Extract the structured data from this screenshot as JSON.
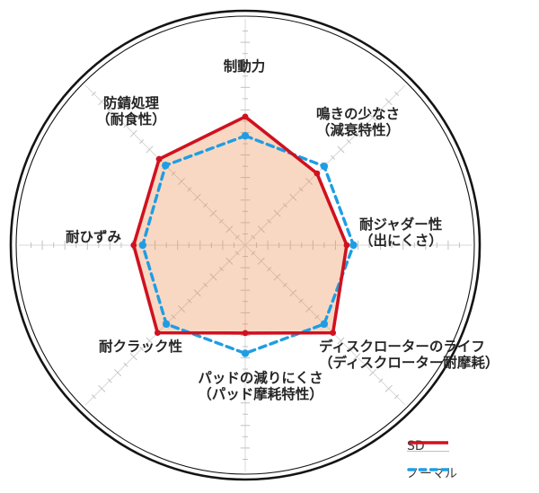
{
  "page": {
    "background": "#ffffff",
    "description_text": ""
  },
  "chart_data": {
    "type": "radar",
    "title": "",
    "grid": true,
    "legend_position": "bottom-right",
    "scale": {
      "min": 0,
      "max": 20,
      "tick_interval": 1,
      "outer_circle_radius_units": 20
    },
    "axes": [
      {
        "id": "braking-force",
        "angle_deg": -90,
        "lines": [
          "制動力",
          ""
        ]
      },
      {
        "id": "low-squeal",
        "angle_deg": -45,
        "lines": [
          "鳴きの少なさ",
          "（減衰特性）"
        ]
      },
      {
        "id": "judder-resistance",
        "angle_deg": 0,
        "lines": [
          "耐ジャダー性",
          "（出にくさ）"
        ]
      },
      {
        "id": "rotor-life",
        "angle_deg": 45,
        "lines": [
          "ディスクローターのライフ",
          "（ディスクローター耐摩耗）"
        ]
      },
      {
        "id": "pad-wear",
        "angle_deg": 90,
        "lines": [
          "パッドの減りにくさ",
          "（パッド摩耗特性）"
        ]
      },
      {
        "id": "crack-resistance",
        "angle_deg": 135,
        "lines": [
          "耐クラック性",
          ""
        ]
      },
      {
        "id": "strain-resistance",
        "angle_deg": 180,
        "lines": [
          "耐ひずみ",
          ""
        ]
      },
      {
        "id": "rust-prevention",
        "angle_deg": -135,
        "lines": [
          "防錆処理",
          "（耐食性）"
        ]
      }
    ],
    "series": [
      {
        "name": "SD",
        "line_style": "solid",
        "color": "#d0111f",
        "fill": "rgba(235,138,72,0.33)",
        "values": [
          11.4,
          9.0,
          9.0,
          11.0,
          7.8,
          11.0,
          9.9,
          10.8
        ]
      },
      {
        "name": "ノーマル",
        "line_style": "dashed",
        "color": "#1f9de4",
        "fill": "none",
        "values": [
          9.7,
          9.9,
          9.6,
          9.9,
          9.6,
          9.9,
          9.1,
          10.0
        ]
      }
    ],
    "style": {
      "outer_circle_color": "#141414",
      "grid_color": "#c2c2c2",
      "axis_line_color": "#d9d9d9",
      "label_color": "#262626"
    }
  }
}
